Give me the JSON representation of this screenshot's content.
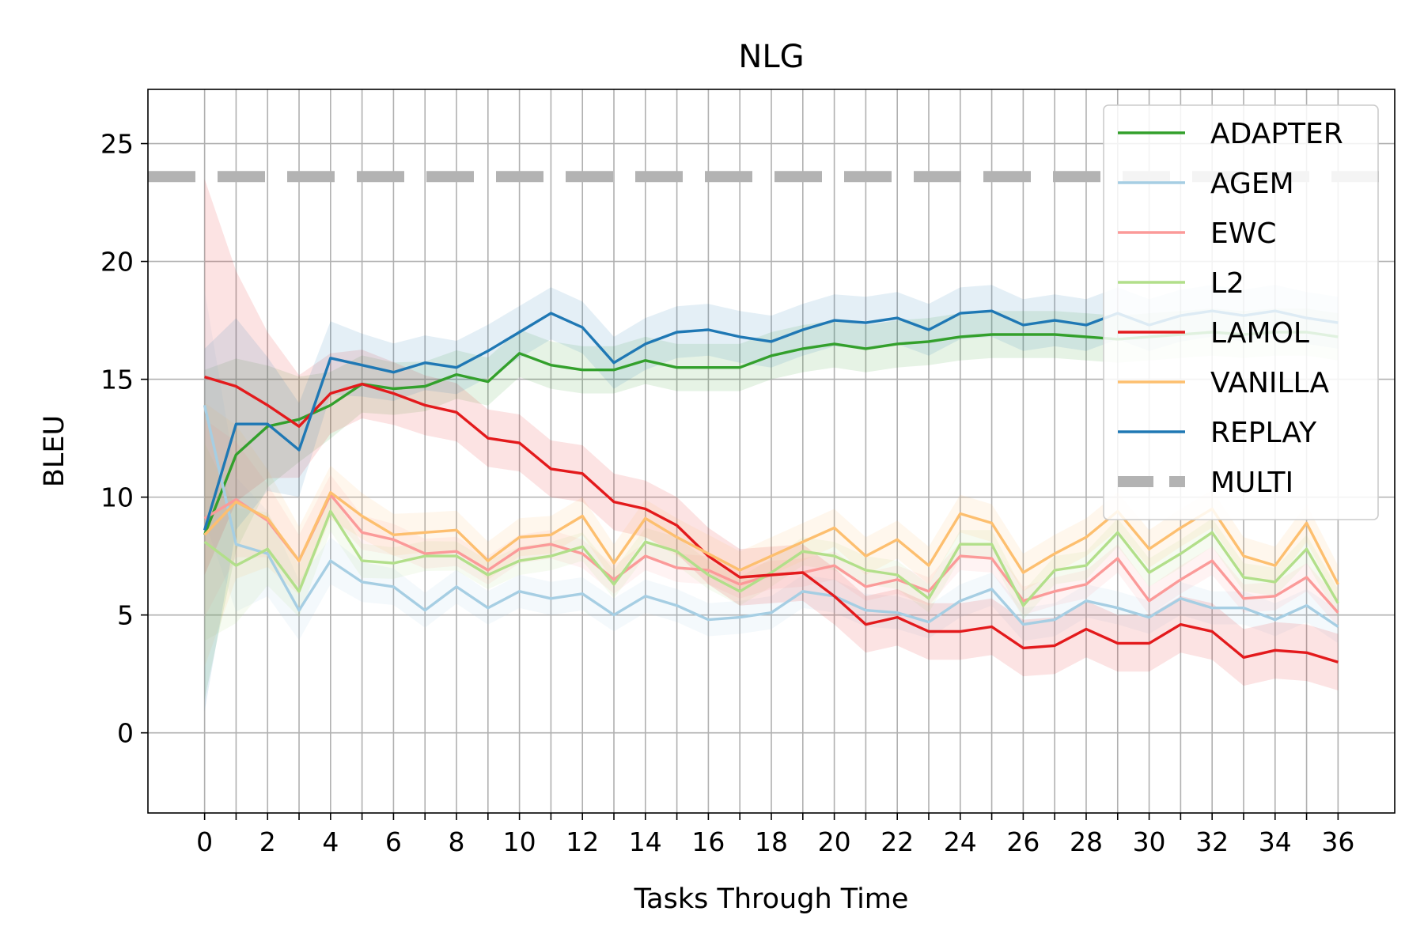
{
  "chart_data": {
    "type": "line",
    "title": "NLG",
    "xlabel": "Tasks Through Time",
    "ylabel": "BLEU",
    "xlim": [
      -1.8,
      37.8
    ],
    "ylim": [
      -3.4,
      27.3
    ],
    "x_ticks": [
      0,
      2,
      4,
      6,
      8,
      10,
      12,
      14,
      16,
      18,
      20,
      22,
      24,
      26,
      28,
      30,
      32,
      34,
      36
    ],
    "x_tick_labels": [
      "0",
      "2",
      "4",
      "6",
      "8",
      "10",
      "12",
      "14",
      "16",
      "18",
      "20",
      "22",
      "24",
      "26",
      "28",
      "30",
      "32",
      "34",
      "36"
    ],
    "y_ticks": [
      0,
      5,
      10,
      15,
      20,
      25
    ],
    "y_tick_labels": [
      "0",
      "5",
      "10",
      "15",
      "20",
      "25"
    ],
    "grid": true,
    "legend_position": "top-right",
    "x": [
      0,
      1,
      2,
      3,
      4,
      5,
      6,
      7,
      8,
      9,
      10,
      11,
      12,
      13,
      14,
      15,
      16,
      17,
      18,
      19,
      20,
      21,
      22,
      23,
      24,
      25,
      26,
      27,
      28,
      29,
      30,
      31,
      32,
      33,
      34,
      35,
      36
    ],
    "series": [
      {
        "name": "ADAPTER",
        "color": "#33a02c",
        "band": 1.0,
        "values": [
          8.4,
          11.8,
          13.0,
          13.3,
          13.9,
          14.8,
          14.6,
          14.7,
          15.2,
          14.9,
          16.1,
          15.6,
          15.4,
          15.4,
          15.8,
          15.5,
          15.5,
          15.5,
          16.0,
          16.3,
          16.5,
          16.3,
          16.5,
          16.6,
          16.8,
          16.9,
          16.9,
          16.9,
          16.8,
          16.7,
          16.8,
          16.9,
          17.0,
          16.9,
          17.0,
          17.0,
          16.8
        ]
      },
      {
        "name": "AGEM",
        "color": "#a6cee3",
        "band": 0.7,
        "values": [
          13.9,
          8.0,
          7.6,
          5.2,
          7.3,
          6.4,
          6.2,
          5.2,
          6.2,
          5.3,
          6.0,
          5.7,
          5.9,
          5.0,
          5.8,
          5.4,
          4.8,
          4.9,
          5.1,
          6.0,
          5.8,
          5.2,
          5.1,
          4.7,
          5.6,
          6.1,
          4.6,
          4.8,
          5.6,
          5.3,
          4.9,
          5.7,
          5.3,
          5.3,
          4.8,
          5.4,
          4.5
        ]
      },
      {
        "name": "EWC",
        "color": "#fb9a99",
        "band": 0.6,
        "values": [
          9.1,
          9.9,
          9.0,
          7.3,
          10.1,
          8.5,
          8.2,
          7.6,
          7.7,
          6.9,
          7.8,
          8.0,
          7.6,
          6.5,
          7.5,
          7.0,
          6.9,
          6.3,
          6.7,
          6.8,
          7.1,
          6.2,
          6.5,
          6.0,
          7.5,
          7.4,
          5.6,
          6.0,
          6.3,
          7.4,
          5.6,
          6.5,
          7.3,
          5.7,
          5.8,
          6.6,
          5.1
        ]
      },
      {
        "name": "L2",
        "color": "#b2df8a",
        "band": 0.6,
        "values": [
          8.1,
          7.1,
          7.8,
          6.0,
          9.4,
          7.3,
          7.2,
          7.5,
          7.5,
          6.7,
          7.3,
          7.5,
          7.9,
          6.3,
          8.1,
          7.7,
          6.7,
          6.0,
          6.8,
          7.7,
          7.5,
          6.9,
          6.7,
          5.7,
          8.0,
          8.0,
          5.4,
          6.9,
          7.1,
          8.5,
          6.8,
          7.6,
          8.5,
          6.6,
          6.4,
          7.8,
          5.5
        ]
      },
      {
        "name": "LAMOL",
        "color": "#e31a1c",
        "band": 1.2,
        "values": [
          15.1,
          14.7,
          13.9,
          13.0,
          14.4,
          14.8,
          14.4,
          13.9,
          13.6,
          12.5,
          12.3,
          11.2,
          11.0,
          9.8,
          9.5,
          8.8,
          7.5,
          6.6,
          6.7,
          6.8,
          5.8,
          4.6,
          4.9,
          4.3,
          4.3,
          4.5,
          3.6,
          3.7,
          4.4,
          3.8,
          3.8,
          4.6,
          4.3,
          3.2,
          3.5,
          3.4,
          3.0
        ]
      },
      {
        "name": "VANILLA",
        "color": "#fdbf6f",
        "band": 0.8,
        "values": [
          8.4,
          9.8,
          9.1,
          7.3,
          10.2,
          9.2,
          8.4,
          8.5,
          8.6,
          7.3,
          8.3,
          8.4,
          9.2,
          7.2,
          9.1,
          8.3,
          7.6,
          6.9,
          7.5,
          8.1,
          8.7,
          7.5,
          8.2,
          7.1,
          9.3,
          8.9,
          6.8,
          7.6,
          8.3,
          9.4,
          7.8,
          8.7,
          9.5,
          7.5,
          7.1,
          8.9,
          6.3
        ]
      },
      {
        "name": "REPLAY",
        "color": "#1f78b4",
        "band": 1.1,
        "values": [
          8.6,
          13.1,
          13.1,
          12.0,
          15.9,
          15.6,
          15.3,
          15.7,
          15.5,
          16.2,
          17.0,
          17.8,
          17.2,
          15.7,
          16.5,
          17.0,
          17.1,
          16.8,
          16.6,
          17.1,
          17.5,
          17.4,
          17.6,
          17.1,
          17.8,
          17.9,
          17.3,
          17.5,
          17.3,
          17.8,
          17.3,
          17.7,
          17.9,
          17.7,
          17.9,
          17.6,
          17.4
        ]
      }
    ],
    "reference_line": {
      "name": "MULTI",
      "value": 23.6,
      "color": "#b3b3b3"
    }
  }
}
